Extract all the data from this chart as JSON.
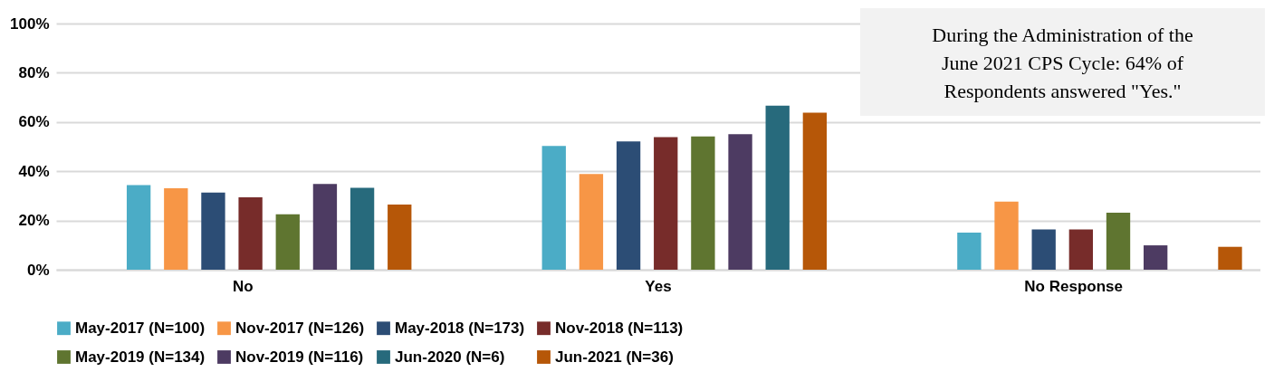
{
  "chart_data": {
    "type": "bar",
    "categories": [
      "No",
      "Yes",
      "No Response"
    ],
    "series": [
      {
        "name": "May-2017 (N=100)",
        "color": "#4bacc6",
        "values": [
          34.4,
          50.3,
          15.1
        ]
      },
      {
        "name": "Nov-2017 (N=126)",
        "color": "#f79646",
        "values": [
          33.1,
          38.9,
          27.7
        ]
      },
      {
        "name": "May-2018 (N=173)",
        "color": "#2c4d75",
        "values": [
          31.3,
          52.1,
          16.4
        ]
      },
      {
        "name": "Nov-2018 (N=113)",
        "color": "#772c2a",
        "values": [
          29.4,
          53.9,
          16.4
        ]
      },
      {
        "name": "May-2019 (N=134)",
        "color": "#5f7530",
        "values": [
          22.5,
          54.1,
          23.2
        ]
      },
      {
        "name": "Nov-2019 (N=116)",
        "color": "#4d3b62",
        "values": [
          34.8,
          55.1,
          9.9
        ]
      },
      {
        "name": "Jun-2020 (N=6)",
        "color": "#276a7c",
        "values": [
          33.3,
          66.6,
          null
        ]
      },
      {
        "name": "Jun-2021 (N=36)",
        "color": "#b65708",
        "values": [
          26.5,
          63.8,
          9.3
        ]
      }
    ],
    "ylim": [
      0,
      100
    ],
    "yticks": [
      {
        "value": 0,
        "label": "0%"
      },
      {
        "value": 20,
        "label": "20%"
      },
      {
        "value": 40,
        "label": "40%"
      },
      {
        "value": 60,
        "label": "60%"
      },
      {
        "value": 80,
        "label": "80%"
      },
      {
        "value": 100,
        "label": "100%"
      }
    ],
    "grid": "y",
    "legend": "bottom",
    "annotations": [
      "During the Administration of the June 2021 CPS Cycle: 64% of Respondents answered \"Yes.\""
    ]
  }
}
